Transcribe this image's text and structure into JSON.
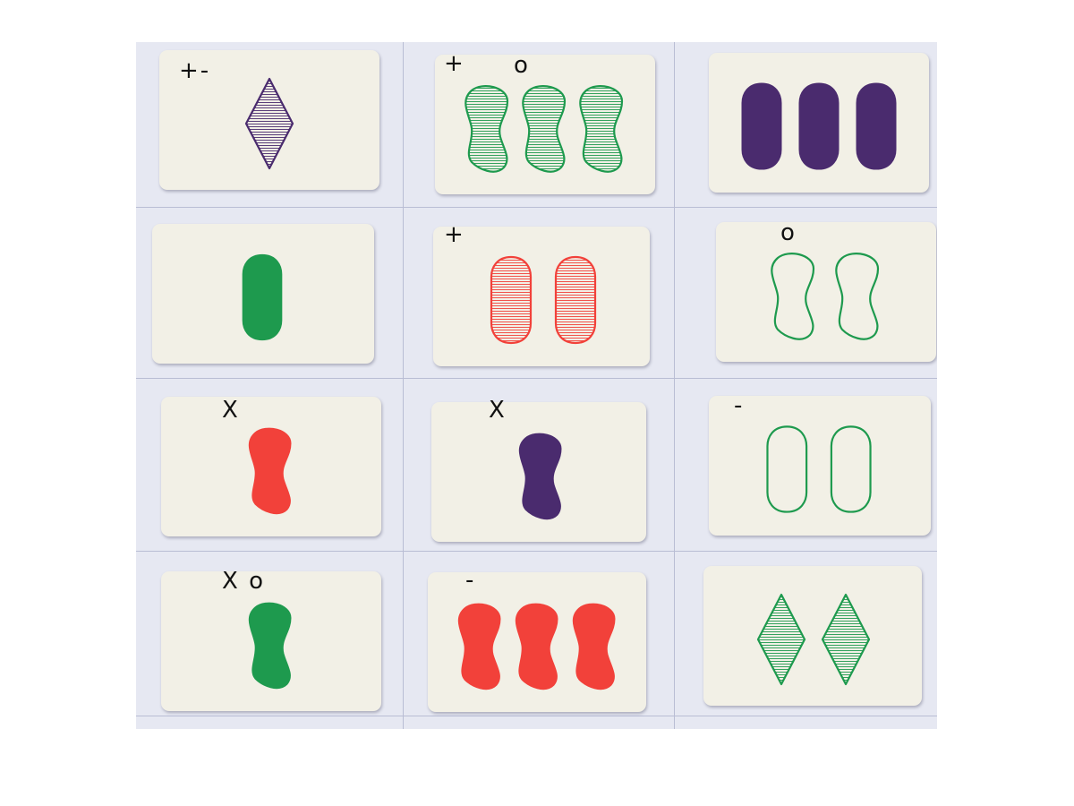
{
  "colors": {
    "purple": "#4a2b6e",
    "green": "#1e9a4e",
    "red": "#f2413a"
  },
  "cards": [
    {
      "row": 0,
      "col": 0,
      "count": 1,
      "shape": "diamond",
      "fill": "striped",
      "color": "purple",
      "mark": "+-"
    },
    {
      "row": 0,
      "col": 1,
      "count": 3,
      "shape": "squiggle",
      "fill": "striped",
      "color": "green",
      "mark": "+",
      "mark2": "o"
    },
    {
      "row": 0,
      "col": 2,
      "count": 3,
      "shape": "oval",
      "fill": "solid",
      "color": "purple",
      "mark": ""
    },
    {
      "row": 1,
      "col": 0,
      "count": 1,
      "shape": "oval",
      "fill": "solid",
      "color": "green",
      "mark": ""
    },
    {
      "row": 1,
      "col": 1,
      "count": 2,
      "shape": "oval",
      "fill": "striped",
      "color": "red",
      "mark": "+"
    },
    {
      "row": 1,
      "col": 2,
      "count": 2,
      "shape": "squiggle",
      "fill": "open",
      "color": "green",
      "mark": "o"
    },
    {
      "row": 2,
      "col": 0,
      "count": 1,
      "shape": "squiggle",
      "fill": "solid",
      "color": "red",
      "mark": "X"
    },
    {
      "row": 2,
      "col": 1,
      "count": 1,
      "shape": "squiggle",
      "fill": "solid",
      "color": "purple",
      "mark": "X"
    },
    {
      "row": 2,
      "col": 2,
      "count": 2,
      "shape": "oval",
      "fill": "open",
      "color": "green",
      "mark": "-"
    },
    {
      "row": 3,
      "col": 0,
      "count": 1,
      "shape": "squiggle",
      "fill": "solid",
      "color": "green",
      "mark": "X o"
    },
    {
      "row": 3,
      "col": 1,
      "count": 3,
      "shape": "squiggle",
      "fill": "solid",
      "color": "red",
      "mark": "-"
    },
    {
      "row": 3,
      "col": 2,
      "count": 2,
      "shape": "diamond",
      "fill": "striped",
      "color": "green",
      "mark": ""
    }
  ]
}
